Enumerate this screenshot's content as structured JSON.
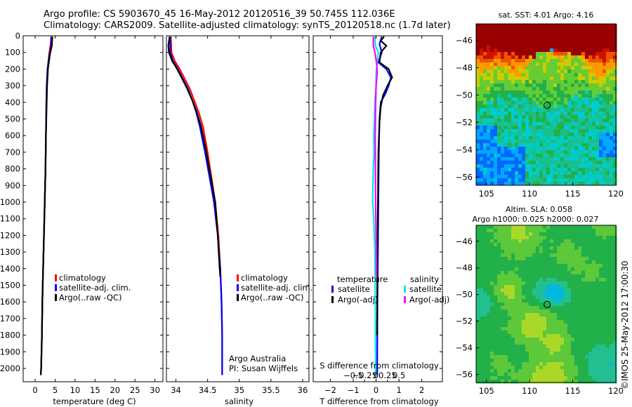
{
  "header": {
    "title_line1": "Argo profile: CS 5903670_45 16-May-2012 20120516_39 50.745S 112.036E",
    "title_line2": "Climatology: CARS2009. Satellite-adjusted climatology: synTS_20120518.nc (1.7d later)"
  },
  "colors": {
    "climatology": "#ff0000",
    "satellite": "#0000ff",
    "argo": "#000000",
    "satellite_s": "#00e6e6",
    "argo_s": "#ff00ff"
  },
  "chart_data": [
    {
      "id": "temperature",
      "type": "line",
      "xlabel": "temperature (deg C)",
      "ylabel": "",
      "xlim": [
        -3,
        32
      ],
      "ylim": [
        2080,
        0
      ],
      "xticks": [
        0,
        5,
        10,
        15,
        20,
        25,
        30
      ],
      "yticks": [
        0,
        100,
        200,
        300,
        400,
        500,
        600,
        700,
        800,
        900,
        1000,
        1100,
        1200,
        1300,
        1400,
        1500,
        1600,
        1700,
        1800,
        1900,
        2000
      ],
      "legend": [
        "climatology",
        "satellite-adj. clim.",
        "Argo(..raw -QC)"
      ],
      "series": [
        {
          "name": "climatology",
          "color": "#ff0000",
          "points": [
            [
              4.1,
              5
            ],
            [
              3.8,
              60
            ],
            [
              3.5,
              110
            ],
            [
              3.1,
              200
            ],
            [
              2.9,
              300
            ],
            [
              2.8,
              400
            ],
            [
              2.7,
              600
            ],
            [
              2.6,
              800
            ],
            [
              2.4,
              1000
            ],
            [
              2.2,
              1200
            ],
            [
              2.0,
              1400
            ],
            [
              1.8,
              1600
            ],
            [
              1.7,
              1800
            ],
            [
              1.5,
              2000
            ],
            [
              1.4,
              2040
            ]
          ]
        },
        {
          "name": "satellite-adj. clim.",
          "color": "#0000ff",
          "points": [
            [
              4.0,
              5
            ],
            [
              4.0,
              60
            ],
            [
              3.6,
              110
            ],
            [
              3.1,
              200
            ],
            [
              2.9,
              300
            ],
            [
              2.8,
              400
            ],
            [
              2.7,
              600
            ],
            [
              2.6,
              800
            ],
            [
              2.4,
              1000
            ],
            [
              2.2,
              1200
            ],
            [
              2.0,
              1400
            ],
            [
              1.8,
              1600
            ],
            [
              1.7,
              1800
            ],
            [
              1.5,
              2000
            ],
            [
              1.4,
              2040
            ]
          ]
        },
        {
          "name": "Argo(..raw -QC)",
          "color": "#000000",
          "points": [
            [
              4.3,
              5
            ],
            [
              4.2,
              60
            ],
            [
              3.7,
              110
            ],
            [
              3.2,
              200
            ],
            [
              3.0,
              300
            ],
            [
              2.9,
              400
            ],
            [
              2.7,
              600
            ],
            [
              2.6,
              800
            ],
            [
              2.4,
              1000
            ],
            [
              2.2,
              1200
            ],
            [
              2.0,
              1400
            ],
            [
              1.8,
              1600
            ],
            [
              1.7,
              1800
            ],
            [
              1.5,
              2000
            ],
            [
              1.4,
              2040
            ]
          ]
        }
      ]
    },
    {
      "id": "salinity",
      "type": "line",
      "xlabel": "salinity",
      "ylabel": "",
      "xlim": [
        33.85,
        36.1
      ],
      "ylim": [
        2080,
        0
      ],
      "xticks": [
        34,
        34.5,
        35,
        35.5,
        36
      ],
      "xtick_labels": [
        "34",
        "34.5",
        "35",
        "35.5",
        "36"
      ],
      "legend": [
        "climatology",
        "satellite-adj. clim.",
        "Argo(..raw -QC)"
      ],
      "annotation": [
        "Argo Australia",
        "PI: Susan Wijffels"
      ],
      "series": [
        {
          "name": "climatology",
          "color": "#ff0000",
          "points": [
            [
              33.92,
              5
            ],
            [
              33.93,
              100
            ],
            [
              33.98,
              150
            ],
            [
              34.06,
              200
            ],
            [
              34.14,
              260
            ],
            [
              34.22,
              320
            ],
            [
              34.29,
              390
            ],
            [
              34.36,
              460
            ],
            [
              34.43,
              550
            ],
            [
              34.5,
              700
            ],
            [
              34.56,
              850
            ],
            [
              34.62,
              1000
            ],
            [
              34.67,
              1200
            ],
            [
              34.7,
              1400
            ],
            [
              34.72,
              1600
            ],
            [
              34.73,
              1800
            ],
            [
              34.73,
              2000
            ],
            [
              34.73,
              2040
            ]
          ]
        },
        {
          "name": "satellite-adj. clim.",
          "color": "#0000ff",
          "points": [
            [
              33.91,
              5
            ],
            [
              33.91,
              100
            ],
            [
              33.95,
              150
            ],
            [
              34.03,
              200
            ],
            [
              34.11,
              260
            ],
            [
              34.19,
              320
            ],
            [
              34.26,
              390
            ],
            [
              34.32,
              460
            ],
            [
              34.38,
              550
            ],
            [
              34.46,
              700
            ],
            [
              34.53,
              850
            ],
            [
              34.6,
              1000
            ],
            [
              34.66,
              1200
            ],
            [
              34.7,
              1400
            ],
            [
              34.72,
              1600
            ],
            [
              34.73,
              1800
            ],
            [
              34.73,
              2000
            ],
            [
              34.73,
              2040
            ]
          ]
        },
        {
          "name": "Argo(..raw -QC)",
          "color": "#000000",
          "points": [
            [
              33.9,
              5
            ],
            [
              33.88,
              60
            ],
            [
              33.89,
              100
            ],
            [
              33.94,
              150
            ],
            [
              34.02,
              200
            ],
            [
              34.1,
              260
            ],
            [
              34.18,
              320
            ],
            [
              34.26,
              390
            ],
            [
              34.33,
              460
            ],
            [
              34.4,
              550
            ],
            [
              34.48,
              700
            ],
            [
              34.55,
              850
            ],
            [
              34.62,
              1000
            ],
            [
              34.66,
              1200
            ],
            [
              34.69,
              1400
            ],
            [
              34.7,
              1450
            ]
          ]
        }
      ]
    },
    {
      "id": "differences",
      "type": "line",
      "xlabel": "T difference from climatology",
      "xlabel_top": "S difference from climatology",
      "xlim": [
        -2.75,
        2.9
      ],
      "ylim": [
        2080,
        0
      ],
      "xticks": [
        -2,
        -1,
        0,
        1,
        2
      ],
      "xtick_labels": [
        "−2",
        "−1",
        "0",
        "1",
        "2"
      ],
      "sticks": [
        -0.5,
        -0.25,
        0,
        0.25,
        0.5
      ],
      "stick_labels": [
        "−0.5",
        "−0.25",
        "0",
        "0.25",
        "0.5"
      ],
      "legend_temperature": {
        "title": "temperature",
        "items": [
          "satellite",
          "Argo(-adj)"
        ]
      },
      "legend_salinity": {
        "title": "salinity",
        "items": [
          "satellite",
          "Argo(-adj)"
        ]
      },
      "series": [
        {
          "name": "temperature satellite",
          "color": "#0000ff",
          "points": [
            [
              0.25,
              5
            ],
            [
              0.15,
              50
            ],
            [
              0.25,
              100
            ],
            [
              0.1,
              160
            ],
            [
              0.45,
              200
            ],
            [
              0.65,
              250
            ],
            [
              0.55,
              300
            ],
            [
              0.4,
              350
            ],
            [
              0.2,
              400
            ],
            [
              0.15,
              500
            ],
            [
              0.12,
              700
            ],
            [
              0.1,
              1000
            ],
            [
              0.08,
              1300
            ],
            [
              0.06,
              1600
            ],
            [
              0.05,
              1900
            ],
            [
              0.05,
              2040
            ]
          ]
        },
        {
          "name": "temperature Argo(-adj)",
          "color": "#000000",
          "points": [
            [
              0.35,
              5
            ],
            [
              0.2,
              30
            ],
            [
              0.45,
              60
            ],
            [
              0.2,
              100
            ],
            [
              0.15,
              160
            ],
            [
              0.55,
              200
            ],
            [
              0.7,
              250
            ],
            [
              0.5,
              300
            ],
            [
              0.3,
              360
            ],
            [
              0.2,
              430
            ],
            [
              0.15,
              520
            ],
            [
              0.1,
              700
            ],
            [
              0.08,
              1000
            ],
            [
              0.06,
              1300
            ],
            [
              0.05,
              1600
            ],
            [
              0.04,
              1800
            ]
          ]
        },
        {
          "name": "salinity satellite",
          "color": "#00e6e6",
          "points": [
            [
              -0.05,
              5
            ],
            [
              -0.03,
              60
            ],
            [
              0.1,
              100
            ],
            [
              0.05,
              160
            ],
            [
              0.0,
              220
            ],
            [
              0.0,
              300
            ],
            [
              -0.05,
              400
            ],
            [
              -0.07,
              500
            ],
            [
              -0.1,
              600
            ],
            [
              -0.09,
              700
            ],
            [
              -0.12,
              800
            ],
            [
              -0.14,
              900
            ],
            [
              -0.15,
              1000
            ],
            [
              -0.1,
              1100
            ],
            [
              -0.05,
              1300
            ],
            [
              -0.04,
              1500
            ],
            [
              -0.03,
              1800
            ],
            [
              -0.02,
              2040
            ]
          ]
        },
        {
          "name": "salinity Argo(-adj)",
          "color": "#ff00ff",
          "points": [
            [
              -0.12,
              5
            ],
            [
              -0.12,
              60
            ],
            [
              -0.05,
              100
            ],
            [
              0.02,
              160
            ],
            [
              0.05,
              220
            ],
            [
              0.0,
              300
            ],
            [
              -0.02,
              400
            ],
            [
              -0.04,
              600
            ],
            [
              -0.03,
              800
            ],
            [
              -0.02,
              1000
            ],
            [
              0.0,
              1200
            ],
            [
              0.02,
              1450
            ]
          ]
        }
      ]
    },
    {
      "id": "sst-map",
      "type": "heatmap",
      "title": "sat. SST: 4.01  Argo: 4.16",
      "xlim": [
        103.8,
        120
      ],
      "ylim": [
        -56.6,
        -44.8
      ],
      "xticks": [
        105,
        110,
        115,
        120
      ],
      "yticks": [
        -46,
        -48,
        -50,
        -52,
        -54,
        -56
      ],
      "marker": [
        112.036,
        -50.745
      ]
    },
    {
      "id": "sla-map",
      "type": "heatmap",
      "title_line1": "Altim. SLA: 0.058",
      "title_line2": "Argo h1000: 0.025  h2000: 0.027",
      "xlim": [
        103.8,
        120
      ],
      "ylim": [
        -56.6,
        -44.8
      ],
      "xticks": [
        105,
        110,
        115,
        120
      ],
      "yticks": [
        -46,
        -48,
        -50,
        -52,
        -54,
        -56
      ],
      "marker": [
        112.036,
        -50.745
      ]
    }
  ],
  "footer": {
    "vertical_text": "©IMOS 25-May-2012 17:00:30"
  }
}
